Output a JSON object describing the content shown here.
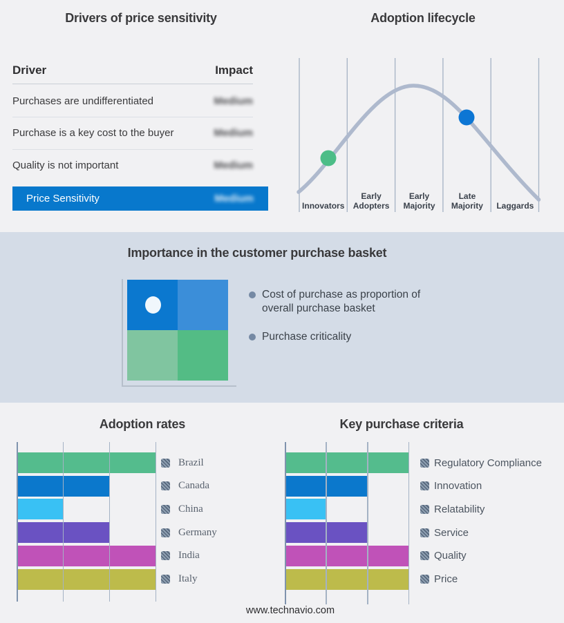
{
  "footer": {
    "url": "www.technavio.com"
  },
  "colors": {
    "page_bg": "#f1f1f3",
    "band_bg": "#d4dce7",
    "accent_blue": "#0878cc",
    "curve": "#aeb9cd",
    "grid": "#a4b2c4",
    "dot_green": "#4cbd87",
    "dot_blue": "#0d76d4"
  },
  "drivers_panel": {
    "title": "Drivers of price sensitivity",
    "header": {
      "driver": "Driver",
      "impact": "Impact"
    },
    "rows": [
      {
        "driver": "Purchases are undifferentiated",
        "impact": "Medium",
        "impact_blurred": true
      },
      {
        "driver": "Purchase is a key cost to the buyer",
        "impact": "Medium",
        "impact_blurred": true
      },
      {
        "driver": "Quality is not important",
        "impact": "Medium",
        "impact_blurred": true
      }
    ],
    "highlight_row": {
      "label": "Price Sensitivity",
      "impact": "Medium",
      "impact_blurred": true,
      "bg": "#0878cc"
    }
  },
  "lifecycle_panel": {
    "title": "Adoption lifecycle",
    "stages": [
      "Innovators",
      "Early Adopters",
      "Early Majority",
      "Late Majority",
      "Laggards"
    ]
  },
  "basket_panel": {
    "title": "Importance in the customer purchase basket",
    "bullets": [
      "Cost of purchase as proportion of overall purchase basket",
      "Purchase criticality"
    ],
    "matrix": {
      "quadrant_colors": [
        "#0b78cf",
        "#3b8ed9",
        "#80c5a0",
        "#53bc85"
      ],
      "marker_quadrant": "top-left",
      "marker_color": "#f0f7fc"
    }
  },
  "chart_data": [
    {
      "name": "adoption_lifecycle",
      "type": "line",
      "title": "Adoption lifecycle",
      "x_categories": [
        "Innovators",
        "Early Adopters",
        "Early Majority",
        "Late Majority",
        "Laggards"
      ],
      "shape": "bell curve rising from Innovators, peaking over Early Majority, falling through Laggards",
      "points_of_interest": [
        {
          "stage": "Innovators",
          "position": "rising slope",
          "color": "#4cbd87"
        },
        {
          "stage": "Late Majority",
          "position": "falling slope",
          "color": "#0d76d4"
        }
      ],
      "grid": "vertical stage-divider lines only",
      "legend": "none",
      "numeric_axis_labels": "none"
    },
    {
      "name": "adoption_rates",
      "type": "bar",
      "orientation": "horizontal",
      "title": "Adoption rates",
      "categories": [
        "Brazil",
        "Canada",
        "China",
        "Germany",
        "India",
        "Italy"
      ],
      "values": [
        3,
        2,
        1,
        2,
        3,
        3
      ],
      "xlim": [
        0,
        3
      ],
      "value_note": "read off gridlines; no numeric axis labels shown",
      "colors": [
        "#54bc8d",
        "#0b78cc",
        "#39c1f4",
        "#6a52c2",
        "#c052b8",
        "#bdbb4b"
      ],
      "legend_position": "right",
      "grid": true
    },
    {
      "name": "key_purchase_criteria",
      "type": "bar",
      "orientation": "horizontal",
      "title": "Key purchase criteria",
      "categories": [
        "Regulatory Compliance",
        "Innovation",
        "Relatability",
        "Service",
        "Quality",
        "Price"
      ],
      "values": [
        3,
        2,
        1,
        2,
        3,
        3
      ],
      "xlim": [
        0,
        3
      ],
      "value_note": "read off gridlines; no numeric axis labels shown",
      "colors": [
        "#54bc8d",
        "#0b78cc",
        "#39c1f4",
        "#6a52c2",
        "#c052b8",
        "#bdbb4b"
      ],
      "legend_position": "right",
      "grid": true
    }
  ]
}
